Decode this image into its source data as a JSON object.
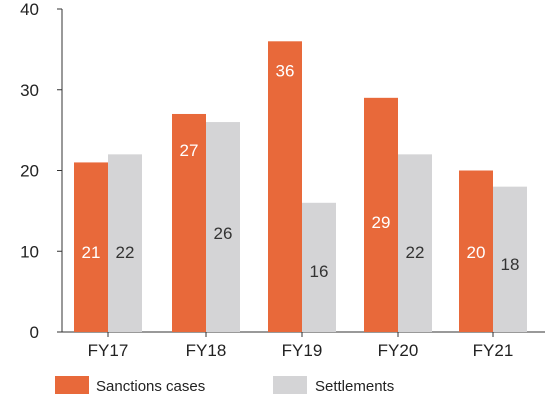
{
  "chart_data": {
    "type": "bar",
    "categories": [
      "FY17",
      "FY18",
      "FY19",
      "FY20",
      "FY21"
    ],
    "series": [
      {
        "name": "Sanctions cases",
        "values": [
          21,
          27,
          36,
          29,
          20
        ],
        "color": "#e8693a"
      },
      {
        "name": "Settlements",
        "values": [
          22,
          26,
          16,
          22,
          18
        ],
        "color": "#d4d4d6"
      }
    ],
    "y_ticks": [
      "0",
      "10",
      "20",
      "30",
      "40"
    ],
    "ylim": [
      0,
      40
    ],
    "grid": false,
    "legend_position": "bottom"
  }
}
